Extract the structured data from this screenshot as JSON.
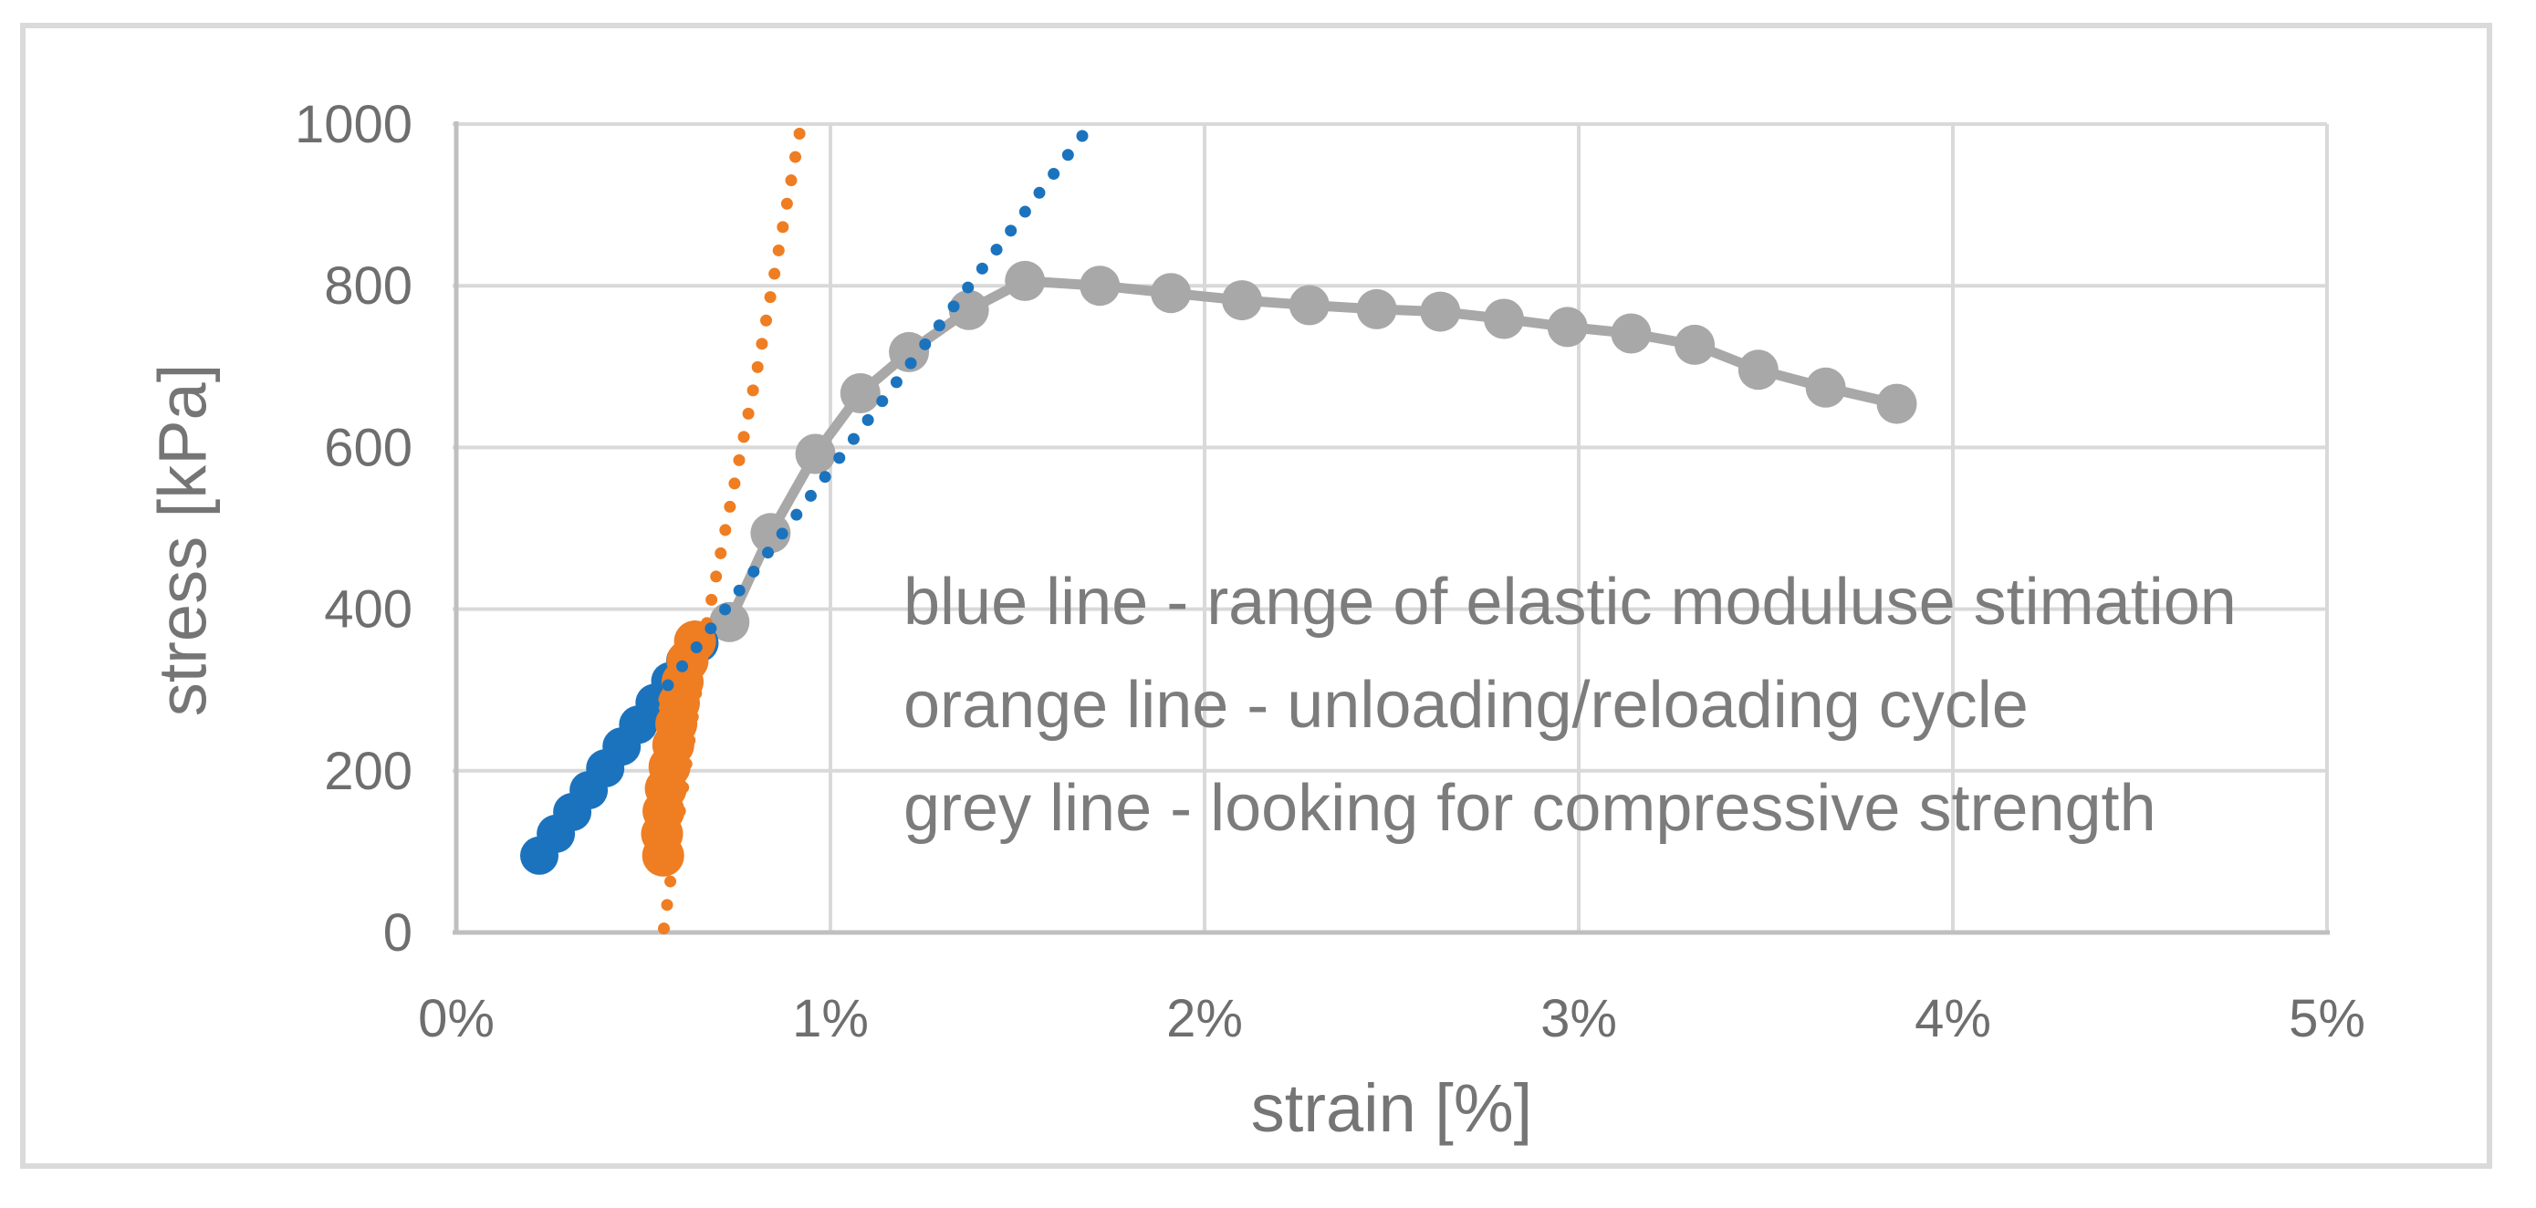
{
  "figure": {
    "background": "#FFFFFF",
    "border_color": "#DADADA"
  },
  "chart_data": {
    "type": "scatter",
    "title": "",
    "xlabel": "strain [%]",
    "ylabel": "stress [kPa]",
    "xlim": [
      0,
      5
    ],
    "ylim": [
      0,
      1000
    ],
    "grid": true,
    "legend_position": "none",
    "x_axis": {
      "tick_labels": [
        "0%",
        "1%",
        "2%",
        "3%",
        "4%",
        "5%"
      ],
      "tick_values": [
        0,
        1,
        2,
        3,
        4,
        5
      ]
    },
    "y_axis": {
      "tick_labels": [
        "0",
        "200",
        "400",
        "600",
        "800",
        "1000"
      ],
      "tick_values": [
        0,
        200,
        400,
        600,
        800,
        1000
      ]
    },
    "colors": {
      "blue": "#1B73BE",
      "orange": "#EF7D22",
      "grey": "#A8A8A8",
      "gridline": "#D9D9D9",
      "axis_line": "#BFBFBF",
      "tick_text": "#6E6E6E",
      "annotation_text": "#7C7C7C"
    },
    "annotation": {
      "lines": [
        "blue line - range of elastic moduluse stimation",
        "orange line - unloading/reloading cycle",
        "grey line - looking for compressive strength"
      ]
    },
    "series": [
      {
        "name": "grey-compressive-strength-curve",
        "description": "grey line - looking for compressive strength",
        "type": "line-with-markers",
        "color": "#A8A8A8",
        "line_width": 11,
        "marker_radius": 22,
        "marker_start_index": 11,
        "points": [
          [
            0.222,
            95
          ],
          [
            0.266,
            122
          ],
          [
            0.31,
            149
          ],
          [
            0.354,
            176
          ],
          [
            0.398,
            203
          ],
          [
            0.442,
            230
          ],
          [
            0.486,
            257
          ],
          [
            0.53,
            284
          ],
          [
            0.572,
            311
          ],
          [
            0.612,
            336
          ],
          [
            0.65,
            358
          ],
          [
            0.73,
            384
          ],
          [
            0.84,
            494
          ],
          [
            0.96,
            592
          ],
          [
            1.08,
            667
          ],
          [
            1.21,
            718
          ],
          [
            1.37,
            770
          ],
          [
            1.52,
            806
          ],
          [
            1.72,
            800
          ],
          [
            1.91,
            791
          ],
          [
            2.1,
            782
          ],
          [
            2.28,
            776
          ],
          [
            2.46,
            771
          ],
          [
            2.63,
            768
          ],
          [
            2.8,
            759
          ],
          [
            2.97,
            749
          ],
          [
            3.14,
            741
          ],
          [
            3.31,
            727
          ],
          [
            3.48,
            696
          ],
          [
            3.66,
            674
          ],
          [
            3.85,
            654
          ]
        ]
      },
      {
        "name": "blue-elastic-modulus-range-markers",
        "description": "blue line - range of elastic moduluse stimation",
        "type": "markers",
        "color": "#1B73BE",
        "marker_radius": 21,
        "points": [
          [
            0.222,
            95
          ],
          [
            0.266,
            122
          ],
          [
            0.31,
            149
          ],
          [
            0.354,
            176
          ],
          [
            0.398,
            203
          ],
          [
            0.442,
            230
          ],
          [
            0.486,
            257
          ],
          [
            0.53,
            284
          ],
          [
            0.572,
            311
          ],
          [
            0.612,
            336
          ],
          [
            0.65,
            358
          ]
        ]
      },
      {
        "name": "orange-unloading-reloading-markers",
        "description": "orange line - unloading/reloading cycle",
        "type": "markers",
        "color": "#EF7D22",
        "marker_radius": 23,
        "points": [
          [
            0.553,
            95
          ],
          [
            0.55,
            122
          ],
          [
            0.554,
            150
          ],
          [
            0.56,
            178
          ],
          [
            0.57,
            205
          ],
          [
            0.58,
            232
          ],
          [
            0.588,
            258
          ],
          [
            0.595,
            284
          ],
          [
            0.605,
            310
          ],
          [
            0.618,
            336
          ],
          [
            0.638,
            360
          ]
        ]
      },
      {
        "name": "orange-trendline-dotted",
        "description": "orange dotted trendline of unloading/reloading cycle",
        "type": "dotted-line",
        "color": "#EF7D22",
        "dot_stroke_width": 13,
        "dot_gap": 26,
        "points": [
          [
            0.555,
            5
          ],
          [
            0.66,
            360
          ],
          [
            0.81,
            710
          ],
          [
            0.92,
            995
          ]
        ]
      },
      {
        "name": "blue-trendline-dotted",
        "description": "blue dotted trendline for elastic modulus estimation",
        "type": "dotted-line",
        "color": "#1B73BE",
        "dot_stroke_width": 13,
        "dot_gap": 26,
        "points": [
          [
            0.222,
            95
          ],
          [
            1.697,
            1000
          ]
        ]
      }
    ]
  }
}
